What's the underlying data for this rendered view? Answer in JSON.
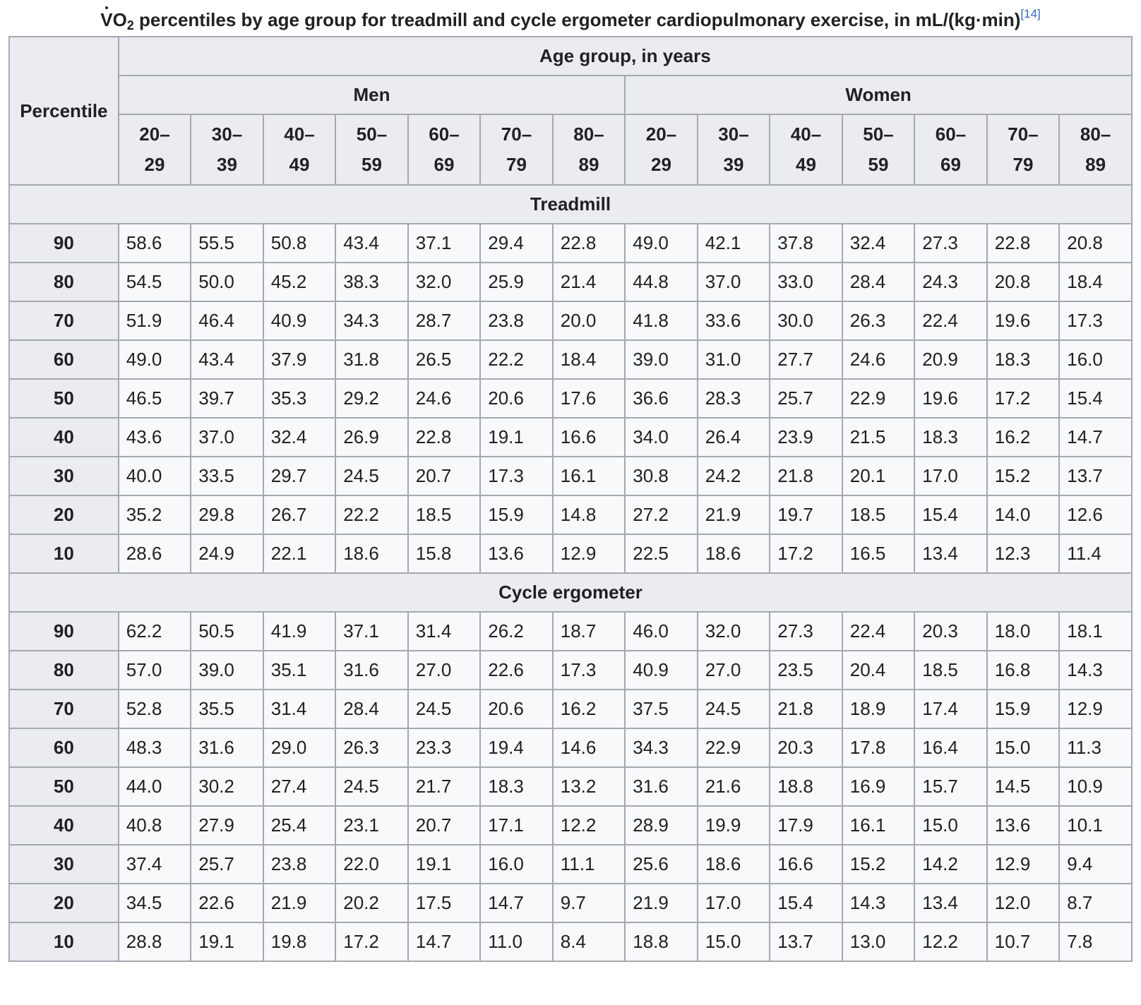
{
  "caption": {
    "text_before_sub": "V",
    "text_o": "O",
    "sub": "2",
    "text_after_sub": " percentiles by age group for treadmill and cycle ergometer cardiopulmonary exercise, in mL/(kg·min)",
    "ref": "[14]"
  },
  "header": {
    "percentile_label": "Percentile",
    "age_group_label": "Age group, in years",
    "men_label": "Men",
    "women_label": "Women",
    "age_ranges": [
      "20–\n29",
      "30–\n39",
      "40–\n49",
      "50–\n59",
      "60–\n69",
      "70–\n79",
      "80–\n89",
      "20–\n29",
      "30–\n39",
      "40–\n49",
      "50–\n59",
      "60–\n69",
      "70–\n79",
      "80–\n89"
    ]
  },
  "sections": [
    {
      "title": "Treadmill",
      "rows": [
        {
          "percentile": "90",
          "values": [
            "58.6",
            "55.5",
            "50.8",
            "43.4",
            "37.1",
            "29.4",
            "22.8",
            "49.0",
            "42.1",
            "37.8",
            "32.4",
            "27.3",
            "22.8",
            "20.8"
          ]
        },
        {
          "percentile": "80",
          "values": [
            "54.5",
            "50.0",
            "45.2",
            "38.3",
            "32.0",
            "25.9",
            "21.4",
            "44.8",
            "37.0",
            "33.0",
            "28.4",
            "24.3",
            "20.8",
            "18.4"
          ]
        },
        {
          "percentile": "70",
          "values": [
            "51.9",
            "46.4",
            "40.9",
            "34.3",
            "28.7",
            "23.8",
            "20.0",
            "41.8",
            "33.6",
            "30.0",
            "26.3",
            "22.4",
            "19.6",
            "17.3"
          ]
        },
        {
          "percentile": "60",
          "values": [
            "49.0",
            "43.4",
            "37.9",
            "31.8",
            "26.5",
            "22.2",
            "18.4",
            "39.0",
            "31.0",
            "27.7",
            "24.6",
            "20.9",
            "18.3",
            "16.0"
          ]
        },
        {
          "percentile": "50",
          "values": [
            "46.5",
            "39.7",
            "35.3",
            "29.2",
            "24.6",
            "20.6",
            "17.6",
            "36.6",
            "28.3",
            "25.7",
            "22.9",
            "19.6",
            "17.2",
            "15.4"
          ]
        },
        {
          "percentile": "40",
          "values": [
            "43.6",
            "37.0",
            "32.4",
            "26.9",
            "22.8",
            "19.1",
            "16.6",
            "34.0",
            "26.4",
            "23.9",
            "21.5",
            "18.3",
            "16.2",
            "14.7"
          ]
        },
        {
          "percentile": "30",
          "values": [
            "40.0",
            "33.5",
            "29.7",
            "24.5",
            "20.7",
            "17.3",
            "16.1",
            "30.8",
            "24.2",
            "21.8",
            "20.1",
            "17.0",
            "15.2",
            "13.7"
          ]
        },
        {
          "percentile": "20",
          "values": [
            "35.2",
            "29.8",
            "26.7",
            "22.2",
            "18.5",
            "15.9",
            "14.8",
            "27.2",
            "21.9",
            "19.7",
            "18.5",
            "15.4",
            "14.0",
            "12.6"
          ]
        },
        {
          "percentile": "10",
          "values": [
            "28.6",
            "24.9",
            "22.1",
            "18.6",
            "15.8",
            "13.6",
            "12.9",
            "22.5",
            "18.6",
            "17.2",
            "16.5",
            "13.4",
            "12.3",
            "11.4"
          ]
        }
      ]
    },
    {
      "title": "Cycle ergometer",
      "rows": [
        {
          "percentile": "90",
          "values": [
            "62.2",
            "50.5",
            "41.9",
            "37.1",
            "31.4",
            "26.2",
            "18.7",
            "46.0",
            "32.0",
            "27.3",
            "22.4",
            "20.3",
            "18.0",
            "18.1"
          ]
        },
        {
          "percentile": "80",
          "values": [
            "57.0",
            "39.0",
            "35.1",
            "31.6",
            "27.0",
            "22.6",
            "17.3",
            "40.9",
            "27.0",
            "23.5",
            "20.4",
            "18.5",
            "16.8",
            "14.3"
          ]
        },
        {
          "percentile": "70",
          "values": [
            "52.8",
            "35.5",
            "31.4",
            "28.4",
            "24.5",
            "20.6",
            "16.2",
            "37.5",
            "24.5",
            "21.8",
            "18.9",
            "17.4",
            "15.9",
            "12.9"
          ]
        },
        {
          "percentile": "60",
          "values": [
            "48.3",
            "31.6",
            "29.0",
            "26.3",
            "23.3",
            "19.4",
            "14.6",
            "34.3",
            "22.9",
            "20.3",
            "17.8",
            "16.4",
            "15.0",
            "11.3"
          ]
        },
        {
          "percentile": "50",
          "values": [
            "44.0",
            "30.2",
            "27.4",
            "24.5",
            "21.7",
            "18.3",
            "13.2",
            "31.6",
            "21.6",
            "18.8",
            "16.9",
            "15.7",
            "14.5",
            "10.9"
          ]
        },
        {
          "percentile": "40",
          "values": [
            "40.8",
            "27.9",
            "25.4",
            "23.1",
            "20.7",
            "17.1",
            "12.2",
            "28.9",
            "19.9",
            "17.9",
            "16.1",
            "15.0",
            "13.6",
            "10.1"
          ]
        },
        {
          "percentile": "30",
          "values": [
            "37.4",
            "25.7",
            "23.8",
            "22.0",
            "19.1",
            "16.0",
            "11.1",
            "25.6",
            "18.6",
            "16.6",
            "15.2",
            "14.2",
            "12.9",
            "9.4"
          ]
        },
        {
          "percentile": "20",
          "values": [
            "34.5",
            "22.6",
            "21.9",
            "20.2",
            "17.5",
            "14.7",
            "9.7",
            "21.9",
            "17.0",
            "15.4",
            "14.3",
            "13.4",
            "12.0",
            "8.7"
          ]
        },
        {
          "percentile": "10",
          "values": [
            "28.8",
            "19.1",
            "19.8",
            "17.2",
            "14.7",
            "11.0",
            "8.4",
            "18.8",
            "15.0",
            "13.7",
            "13.0",
            "12.2",
            "10.7",
            "7.8"
          ]
        }
      ]
    }
  ]
}
